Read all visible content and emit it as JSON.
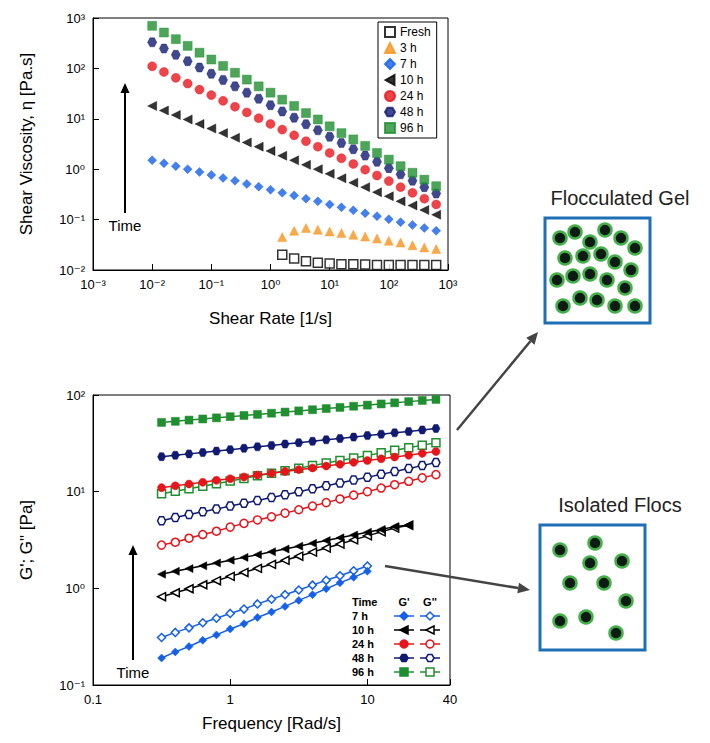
{
  "chart_data": [
    {
      "type": "scatter",
      "x_label": "Shear Rate [1/s]",
      "y_label": "Shear Viscosity, η [Pa.s]",
      "log": true,
      "grid": false,
      "legend": "upper right",
      "annotations": [
        "Time"
      ],
      "xlim": [
        0.001,
        1000
      ],
      "xticks": [
        {
          "value": 0.001,
          "label": "10⁻³"
        },
        {
          "value": 0.01,
          "label": "10⁻²"
        },
        {
          "value": 0.1,
          "label": "10⁻¹"
        },
        {
          "value": 1,
          "label": "10⁰"
        },
        {
          "value": 10,
          "label": "10¹"
        },
        {
          "value": 100,
          "label": "10²"
        },
        {
          "value": 1000,
          "label": "10³"
        }
      ],
      "ylim": [
        0.01,
        1000
      ],
      "yticks": [
        {
          "value": 0.01,
          "label": "10⁻²"
        },
        {
          "value": 0.1,
          "label": "10⁻¹"
        },
        {
          "value": 1,
          "label": "10⁰"
        },
        {
          "value": 10,
          "label": "10¹"
        },
        {
          "value": 100,
          "label": "10²"
        },
        {
          "value": 1000,
          "label": "10³"
        }
      ],
      "x": [
        0.01,
        0.0158,
        0.0251,
        0.0398,
        0.0631,
        0.1,
        0.158,
        0.251,
        0.398,
        0.631,
        1,
        1.58,
        2.51,
        3.98,
        6.31,
        10,
        15.8,
        25.1,
        39.8,
        63.1,
        100,
        158,
        251,
        398,
        631
      ],
      "series": [
        {
          "name": "Fresh",
          "color": "#000000",
          "marker": "square-open",
          "values": [
            null,
            null,
            null,
            null,
            null,
            null,
            null,
            null,
            null,
            null,
            null,
            0.02,
            0.017,
            0.015,
            0.014,
            0.0135,
            0.013,
            0.013,
            0.0128,
            0.0125,
            0.0125,
            0.0125,
            0.0125,
            0.0125,
            0.0125
          ]
        },
        {
          "name": "3 h",
          "color": "#f7941d",
          "marker": "triangle",
          "values": [
            null,
            null,
            null,
            null,
            null,
            null,
            null,
            null,
            null,
            null,
            null,
            0.045,
            0.06,
            0.068,
            0.063,
            0.058,
            0.054,
            0.05,
            0.046,
            0.042,
            0.038,
            0.035,
            0.031,
            0.028,
            0.026
          ]
        },
        {
          "name": "7 h",
          "color": "#1560e8",
          "marker": "diamond",
          "values": [
            1.5,
            1.31,
            1.15,
            1.0,
            0.88,
            0.77,
            0.67,
            0.59,
            0.51,
            0.45,
            0.39,
            0.34,
            0.3,
            0.26,
            0.23,
            0.2,
            0.175,
            0.153,
            0.134,
            0.117,
            0.102,
            0.089,
            0.078,
            0.068,
            0.06
          ]
        },
        {
          "name": "10 h",
          "color": "#000000",
          "marker": "triangle-left",
          "values": [
            18,
            14.6,
            11.9,
            9.7,
            7.9,
            6.4,
            5.2,
            4.2,
            3.4,
            2.8,
            2.3,
            1.85,
            1.5,
            1.22,
            1.0,
            0.81,
            0.66,
            0.54,
            0.44,
            0.35,
            0.29,
            0.23,
            0.19,
            0.155,
            0.125
          ]
        },
        {
          "name": "24 h",
          "color": "#e8141b",
          "marker": "circle",
          "values": [
            110,
            85,
            65,
            50,
            38,
            29.5,
            22.7,
            17.4,
            13.4,
            10.3,
            7.9,
            6.1,
            4.7,
            3.6,
            2.8,
            2.1,
            1.65,
            1.27,
            0.98,
            0.75,
            0.58,
            0.44,
            0.34,
            0.26,
            0.2
          ]
        },
        {
          "name": "48 h",
          "color": "#101a72",
          "marker": "hexagon",
          "values": [
            330,
            248,
            186,
            139,
            104,
            78,
            59,
            44,
            33,
            25,
            18.6,
            14,
            10.5,
            7.8,
            5.9,
            4.4,
            3.3,
            2.5,
            1.86,
            1.4,
            1.05,
            0.79,
            0.59,
            0.44,
            0.33
          ]
        },
        {
          "name": "96 h",
          "color": "#1f8f2f",
          "marker": "square",
          "values": [
            700,
            515,
            380,
            280,
            205,
            150,
            112,
            82,
            60,
            44,
            33,
            24,
            18,
            13,
            9.7,
            7.1,
            5.2,
            3.9,
            2.9,
            2.1,
            1.55,
            1.15,
            0.85,
            0.62,
            0.46
          ]
        }
      ]
    },
    {
      "type": "line",
      "x_label": "Frequency [Rad/s]",
      "y_label": "G'; G\" [Pa]",
      "log": true,
      "grid": false,
      "legend": "lower right",
      "legend_header": [
        "Time",
        "G'",
        "G''"
      ],
      "annotations": [
        "Time"
      ],
      "xlim": [
        0.1,
        40
      ],
      "xticks": [
        0.1,
        1,
        10,
        40
      ],
      "ylim": [
        0.1,
        100
      ],
      "yticks": [
        {
          "value": 0.1,
          "label": "10⁻¹"
        },
        {
          "value": 1,
          "label": "10⁰"
        },
        {
          "value": 10,
          "label": "10¹"
        },
        {
          "value": 100,
          "label": "10²"
        }
      ],
      "x": [
        0.316,
        0.398,
        0.501,
        0.631,
        0.794,
        1,
        1.26,
        1.58,
        2,
        2.51,
        3.16,
        3.98,
        5.01,
        6.31,
        7.94,
        10,
        12.6,
        15.8,
        20,
        25.1,
        31.6
      ],
      "series": [
        {
          "name": "7 h",
          "modulus": "G'",
          "color": "#1560e8",
          "marker": "diamond",
          "values": [
            0.19,
            0.22,
            0.25,
            0.29,
            0.33,
            0.38,
            0.43,
            0.5,
            0.57,
            0.65,
            0.75,
            0.86,
            0.99,
            1.14,
            1.3,
            1.5,
            null,
            null,
            null,
            null,
            null
          ]
        },
        {
          "name": "7 h",
          "modulus": "G''",
          "color": "#1560e8",
          "marker": "diamond-open",
          "values": [
            0.31,
            0.35,
            0.39,
            0.44,
            0.49,
            0.55,
            0.61,
            0.69,
            0.77,
            0.86,
            0.96,
            1.08,
            1.21,
            1.35,
            1.52,
            1.7,
            null,
            null,
            null,
            null,
            null
          ]
        },
        {
          "name": "10 h",
          "modulus": "G'",
          "color": "#000000",
          "marker": "triangle-left",
          "values": [
            1.4,
            1.5,
            1.6,
            1.71,
            1.83,
            1.95,
            2.09,
            2.23,
            2.39,
            2.55,
            2.73,
            2.92,
            3.12,
            3.33,
            3.56,
            3.81,
            4.07,
            4.35,
            4.5,
            null,
            null
          ]
        },
        {
          "name": "10 h",
          "modulus": "G''",
          "color": "#000000",
          "marker": "triangle-left-open",
          "values": [
            0.82,
            0.9,
            0.99,
            1.09,
            1.2,
            1.33,
            1.46,
            1.61,
            1.77,
            1.95,
            2.15,
            2.37,
            2.61,
            2.87,
            3.17,
            3.49,
            3.84,
            4.2,
            4.5,
            null,
            null
          ]
        },
        {
          "name": "24 h",
          "modulus": "G'",
          "color": "#e8141b",
          "marker": "circle",
          "values": [
            11,
            11.5,
            12,
            12.5,
            13.1,
            13.6,
            14.2,
            14.9,
            15.5,
            16.2,
            16.9,
            17.6,
            18.4,
            19.2,
            20.1,
            21,
            21.9,
            22.8,
            23.8,
            24.9,
            26
          ]
        },
        {
          "name": "24 h",
          "modulus": "G''",
          "color": "#e8141b",
          "marker": "circle-open",
          "values": [
            2.8,
            3.0,
            3.3,
            3.6,
            3.9,
            4.3,
            4.7,
            5.1,
            5.5,
            6.0,
            6.5,
            7.1,
            7.7,
            8.4,
            9.2,
            10,
            10.9,
            11.8,
            12.8,
            13.9,
            15
          ]
        },
        {
          "name": "48 h",
          "modulus": "G'",
          "color": "#101a72",
          "marker": "hexagon",
          "values": [
            23,
            23.8,
            24.6,
            25.4,
            26.3,
            27.2,
            28.1,
            29.1,
            30.1,
            31.1,
            32.1,
            33.2,
            34.4,
            35.5,
            36.7,
            38,
            39.3,
            40.6,
            42,
            43.5,
            45
          ]
        },
        {
          "name": "48 h",
          "modulus": "G''",
          "color": "#101a72",
          "marker": "hexagon-open",
          "values": [
            5,
            5.4,
            5.8,
            6.2,
            6.6,
            7.1,
            7.6,
            8.1,
            8.7,
            9.3,
            10,
            10.7,
            11.5,
            12.3,
            13.2,
            14.1,
            15.1,
            16.2,
            17.4,
            18.6,
            20
          ]
        },
        {
          "name": "96 h",
          "modulus": "G'",
          "color": "#1f8f2f",
          "marker": "square",
          "values": [
            52,
            53.4,
            55,
            56.5,
            58,
            59.7,
            61.4,
            63,
            64.8,
            66.6,
            68.5,
            70.4,
            72.4,
            74.4,
            76.5,
            78.6,
            80.8,
            83,
            85.4,
            87.8,
            90
          ]
        },
        {
          "name": "96 h",
          "modulus": "G''",
          "color": "#1f8f2f",
          "marker": "square-open",
          "values": [
            9.5,
            10.1,
            10.7,
            11.4,
            12.1,
            12.9,
            13.7,
            14.6,
            15.5,
            16.5,
            17.5,
            18.6,
            19.8,
            21,
            22.3,
            23.7,
            25.2,
            26.8,
            28.5,
            30.3,
            32
          ]
        }
      ]
    }
  ],
  "schematics": [
    {
      "label": "Flocculated Gel"
    },
    {
      "label": "Isolated Flocs"
    }
  ]
}
